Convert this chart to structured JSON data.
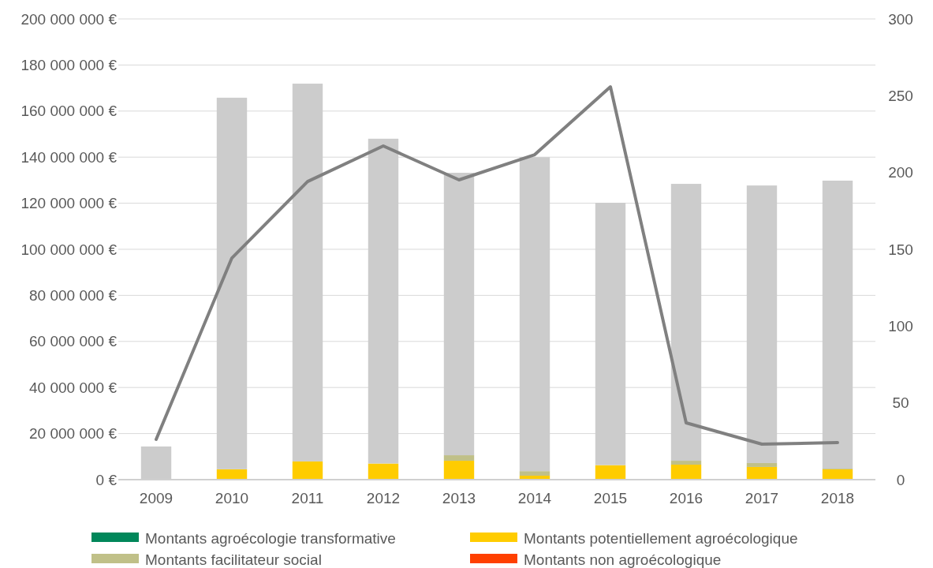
{
  "chart_data": {
    "type": "bar",
    "stacked": true,
    "categories": [
      "2009",
      "2010",
      "2011",
      "2012",
      "2013",
      "2014",
      "2015",
      "2016",
      "2017",
      "2018"
    ],
    "series": [
      {
        "name": "Montants agroécologie transformative",
        "color": "#00875a",
        "values": [
          0,
          0,
          0,
          0,
          0,
          0,
          0,
          0,
          0,
          0
        ]
      },
      {
        "name": "Montants potentiellement agroécologique",
        "color": "#ffcc00",
        "values": [
          0,
          4500000.0,
          7900000.0,
          7000000.0,
          8200000.0,
          1700000.0,
          6300000.0,
          6500000.0,
          5500000.0,
          4500000.0
        ]
      },
      {
        "name": "Montants facilitateur social",
        "color": "#c0c088",
        "values": [
          0,
          0,
          0,
          0,
          2400000.0,
          2000000.0,
          0,
          1700000.0,
          1700000.0,
          300000.0
        ]
      },
      {
        "name": "Montants non agroécologique",
        "color": "#ff4000",
        "values": [
          0,
          0,
          0,
          0,
          0,
          0,
          0,
          0,
          0,
          0
        ]
      },
      {
        "color": "#cccccc",
        "values": [
          14400000.0,
          161300000.0,
          164000000.0,
          141000000.0,
          122600000.0,
          136300000.0,
          113900000.0,
          120200000.0,
          120500000.0,
          125000000.0
        ]
      },
      {
        "type": "line",
        "axis": "y2",
        "color": "#808080",
        "values": [
          26.2,
          144.3,
          194.1,
          217.3,
          195.2,
          211.6,
          255.8,
          37,
          23.1,
          24.1
        ]
      }
    ],
    "ylim": [
      0,
      200000000
    ],
    "yticks": [
      {
        "value": 0,
        "label": "0 €"
      },
      {
        "value": 20000000,
        "label": "20 000 000 €"
      },
      {
        "value": 40000000,
        "label": "40 000 000 €"
      },
      {
        "value": 60000000,
        "label": "60 000 000 €"
      },
      {
        "value": 80000000,
        "label": "80 000 000 €"
      },
      {
        "value": 100000000,
        "label": "100 000 000 €"
      },
      {
        "value": 120000000,
        "label": "120 000 000 €"
      },
      {
        "value": 140000000,
        "label": "140 000 000 €"
      },
      {
        "value": 160000000,
        "label": "160 000 000 €"
      },
      {
        "value": 180000000,
        "label": "180 000 000 €"
      },
      {
        "value": 200000000,
        "label": "200 000 000 €"
      }
    ],
    "y2lim": [
      0,
      300
    ],
    "y2ticks": [
      0,
      50,
      100,
      150,
      200,
      250,
      300
    ],
    "grid": "y",
    "legend": "bottom"
  }
}
